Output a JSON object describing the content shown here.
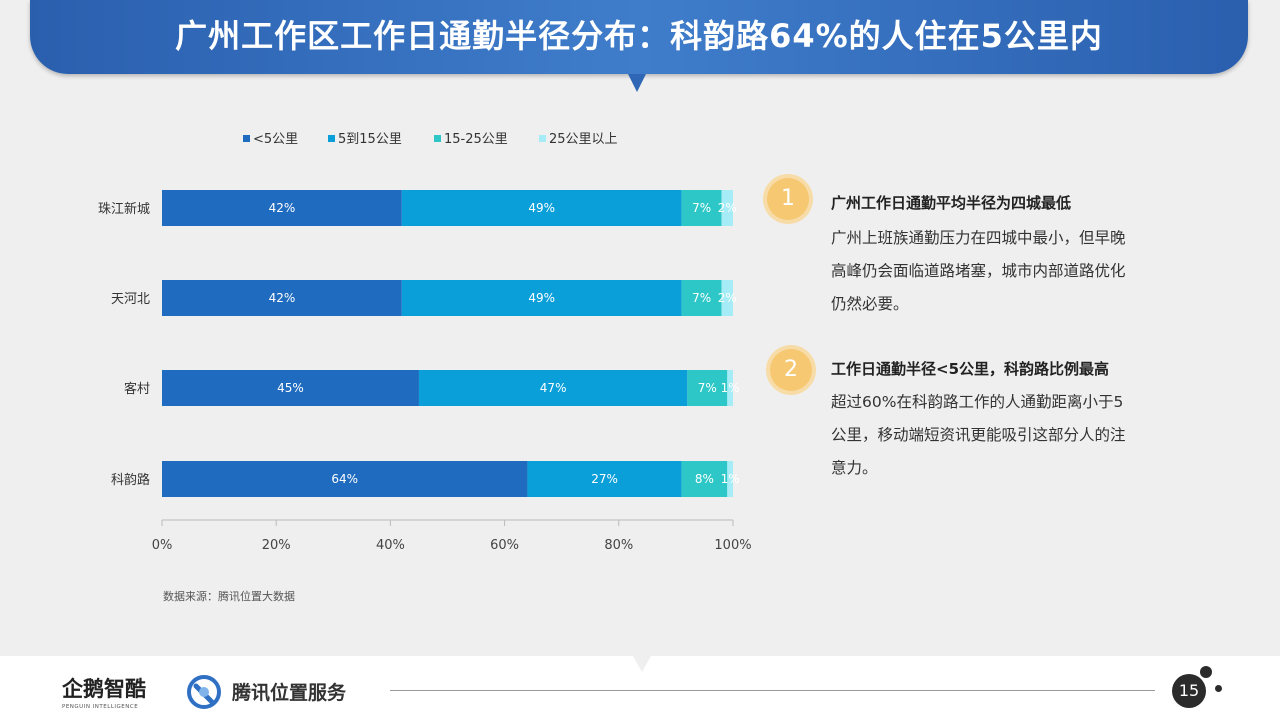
{
  "title": "广州工作区工作日通勤半径分布：科韵路64%的人住在5公里内",
  "source": "数据来源：腾讯位置大数据",
  "chart_data": {
    "type": "bar",
    "orientation": "horizontal",
    "stacked": true,
    "categories": [
      "珠江新城",
      "天河北",
      "客村",
      "科韵路"
    ],
    "series": [
      {
        "name": "<5公里",
        "color": "#1f6bc0",
        "values": [
          42,
          42,
          45,
          64
        ],
        "labels": [
          "42%",
          "42%",
          "45%",
          "64%"
        ]
      },
      {
        "name": "5到15公里",
        "color": "#0b9fd9",
        "values": [
          49,
          49,
          47,
          27
        ],
        "labels": [
          "49%",
          "49%",
          "47%",
          "27%"
        ]
      },
      {
        "name": "15-25公里",
        "color": "#2dc7c7",
        "values": [
          7,
          7,
          7,
          8
        ],
        "labels": [
          "7%",
          "7%",
          "7%",
          "8%"
        ]
      },
      {
        "name": "25公里以上",
        "color": "#a6ecf6",
        "values": [
          2,
          2,
          1,
          1
        ],
        "labels": [
          "2%",
          "2%",
          "1%",
          "1%"
        ]
      }
    ],
    "x_ticks": [
      "0%",
      "20%",
      "40%",
      "60%",
      "80%",
      "100%"
    ],
    "xlim": [
      0,
      100
    ],
    "grid": false,
    "legend": "top"
  },
  "points": [
    {
      "number": "1",
      "title": "广州工作日通勤平均半径为四城最低",
      "lines": [
        "广州上班族通勤压力在四城中最小，但早晚",
        "高峰仍会面临道路堵塞，城市内部道路优化",
        "仍然必要。"
      ]
    },
    {
      "number": "2",
      "title": "工作日通勤半径<5公里，科韵路比例最高",
      "lines": [
        "超过60%在科韵路工作的人通勤距离小于5",
        "公里，移动端短资讯更能吸引这部分人的注",
        "意力。"
      ]
    }
  ],
  "footer": {
    "logo1": "企鹅智酷",
    "logo1_sub": "PENGUIN INTELLIGENCE",
    "logo2": "腾讯位置服务",
    "page_number": "15"
  }
}
